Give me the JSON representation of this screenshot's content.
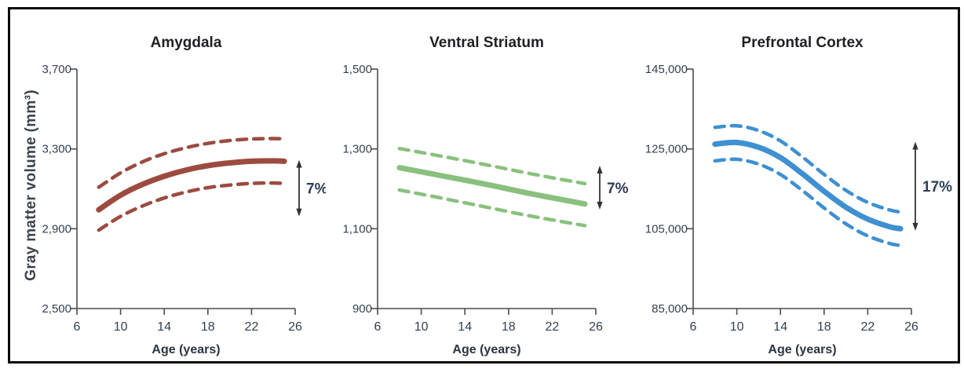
{
  "figure": {
    "y_axis_label": "Gray matter volume (mm³)",
    "x_axis_label": "Age (years)",
    "title_color": "#1f2023",
    "tick_label_color": "#333f4e",
    "axis_color": "#4d4d4d",
    "arrow_color": "#333333",
    "percent_label_color": "#2f3c55",
    "frame_border_color": "#0b0b0b"
  },
  "chart_data": [
    {
      "type": "line",
      "title": "Amygdala",
      "xlabel": "Age (years)",
      "ylabel": "Gray matter volume (mm³)",
      "color": "#9c4b40",
      "xlim": [
        6,
        26
      ],
      "xticks": [
        6,
        10,
        14,
        18,
        22,
        26
      ],
      "ylim": [
        2500,
        3700
      ],
      "yticks": [
        2500,
        2900,
        3300,
        3700
      ],
      "ytick_labels": [
        "2,500",
        "2,900",
        "3,300",
        "3,700"
      ],
      "legend": "none",
      "grid": false,
      "annotation": {
        "label": "7%",
        "arrow_top": 3245,
        "arrow_bottom": 2962
      },
      "series": [
        {
          "name": "mean",
          "style": "solid",
          "points": [
            [
              8,
              2995
            ],
            [
              10,
              3068
            ],
            [
              12,
              3122
            ],
            [
              14,
              3163
            ],
            [
              16,
              3194
            ],
            [
              18,
              3216
            ],
            [
              20,
              3230
            ],
            [
              22,
              3238
            ],
            [
              24,
              3240
            ],
            [
              25,
              3238
            ]
          ]
        },
        {
          "name": "upper-ci",
          "style": "dashed",
          "points": [
            [
              8,
              3108
            ],
            [
              10,
              3180
            ],
            [
              12,
              3235
            ],
            [
              14,
              3276
            ],
            [
              16,
              3306
            ],
            [
              18,
              3328
            ],
            [
              20,
              3342
            ],
            [
              22,
              3350
            ],
            [
              24,
              3352
            ],
            [
              25,
              3350
            ]
          ]
        },
        {
          "name": "lower-ci",
          "style": "dashed",
          "points": [
            [
              8,
              2893
            ],
            [
              10,
              2962
            ],
            [
              12,
              3014
            ],
            [
              14,
              3054
            ],
            [
              16,
              3084
            ],
            [
              18,
              3106
            ],
            [
              20,
              3119
            ],
            [
              22,
              3127
            ],
            [
              24,
              3129
            ],
            [
              25,
              3127
            ]
          ]
        }
      ]
    },
    {
      "type": "line",
      "title": "Ventral Striatum",
      "xlabel": "Age (years)",
      "color": "#8ac07f",
      "xlim": [
        6,
        26
      ],
      "xticks": [
        6,
        10,
        14,
        18,
        22,
        26
      ],
      "ylim": [
        900,
        1500
      ],
      "yticks": [
        900,
        1100,
        1300,
        1500
      ],
      "ytick_labels": [
        "900",
        "1,100",
        "1,300",
        "1,500"
      ],
      "legend": "none",
      "grid": false,
      "annotation": {
        "label": "7%",
        "arrow_top": 1258,
        "arrow_bottom": 1148
      },
      "series": [
        {
          "name": "mean",
          "style": "solid",
          "points": [
            [
              8,
              1253
            ],
            [
              12,
              1232
            ],
            [
              16,
              1211
            ],
            [
              20,
              1188
            ],
            [
              25,
              1162
            ]
          ]
        },
        {
          "name": "upper-ci",
          "style": "dashed",
          "points": [
            [
              8,
              1301
            ],
            [
              12,
              1281
            ],
            [
              16,
              1260
            ],
            [
              20,
              1238
            ],
            [
              25,
              1213
            ]
          ]
        },
        {
          "name": "lower-ci",
          "style": "dashed",
          "points": [
            [
              8,
              1197
            ],
            [
              12,
              1176
            ],
            [
              16,
              1154
            ],
            [
              20,
              1132
            ],
            [
              25,
              1108
            ]
          ]
        }
      ]
    },
    {
      "type": "line",
      "title": "Prefrontal Cortex",
      "xlabel": "Age (years)",
      "color": "#3f90d1",
      "xlim": [
        6,
        26
      ],
      "xticks": [
        6,
        10,
        14,
        18,
        22,
        26
      ],
      "ylim": [
        85000,
        145000
      ],
      "yticks": [
        85000,
        105000,
        125000,
        145000
      ],
      "ytick_labels": [
        "85,000",
        "105,000",
        "125,000",
        "145,000"
      ],
      "legend": "none",
      "grid": false,
      "annotation": {
        "label": "17%",
        "arrow_top": 126800,
        "arrow_bottom": 104500
      },
      "series": [
        {
          "name": "mean",
          "style": "solid",
          "points": [
            [
              8,
              126200
            ],
            [
              10,
              126600
            ],
            [
              12,
              125400
            ],
            [
              14,
              122800
            ],
            [
              16,
              118800
            ],
            [
              18,
              114400
            ],
            [
              20,
              110400
            ],
            [
              22,
              107400
            ],
            [
              24,
              105500
            ],
            [
              25,
              105000
            ]
          ]
        },
        {
          "name": "upper-ci",
          "style": "dashed",
          "points": [
            [
              8,
              130400
            ],
            [
              10,
              130800
            ],
            [
              12,
              129600
            ],
            [
              14,
              127000
            ],
            [
              16,
              123000
            ],
            [
              18,
              118600
            ],
            [
              20,
              114600
            ],
            [
              22,
              111600
            ],
            [
              24,
              109700
            ],
            [
              25,
              109200
            ]
          ]
        },
        {
          "name": "lower-ci",
          "style": "dashed",
          "points": [
            [
              8,
              122000
            ],
            [
              10,
              122400
            ],
            [
              12,
              121200
            ],
            [
              14,
              118600
            ],
            [
              16,
              114600
            ],
            [
              18,
              110200
            ],
            [
              20,
              106200
            ],
            [
              22,
              103200
            ],
            [
              24,
              101300
            ],
            [
              25,
              100800
            ]
          ]
        }
      ]
    }
  ]
}
